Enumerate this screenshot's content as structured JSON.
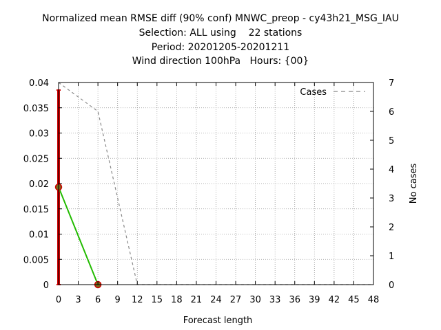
{
  "chart_data": {
    "type": "line",
    "title_lines": [
      "Normalized mean RMSE diff (90% conf) MNWC_preop - cy43h21_MSG_IAU",
      "Selection: ALL using    22 stations",
      "Period: 20201205-20201211",
      "Wind direction 100hPa   Hours: {00}"
    ],
    "xlabel": "Forecast length",
    "ylabel_right": "No cases",
    "xlim": [
      0,
      48
    ],
    "xticks": [
      0,
      3,
      6,
      9,
      12,
      15,
      18,
      21,
      24,
      27,
      30,
      33,
      36,
      39,
      42,
      45,
      48
    ],
    "ylim_left": [
      0,
      0.04
    ],
    "yticks_left": [
      "0",
      "0.005",
      "0.01",
      "0.015",
      "0.02",
      "0.025",
      "0.03",
      "0.035",
      "0.04"
    ],
    "ylim_right": [
      0,
      7
    ],
    "yticks_right": [
      "0",
      "1",
      "2",
      "3",
      "4",
      "5",
      "6",
      "7"
    ],
    "grid": true,
    "legend_position": "top-right",
    "series": [
      {
        "style": "line",
        "color": "#22bb00",
        "axis": "left",
        "x": [
          0,
          6
        ],
        "y": [
          0.0193,
          0.0
        ]
      },
      {
        "name": "Cases",
        "style": "dashed",
        "color": "#888888",
        "axis": "right",
        "x": [
          0,
          3,
          6,
          12,
          15,
          18,
          21,
          24,
          27,
          30,
          33,
          36,
          39,
          42,
          45,
          48
        ],
        "y": [
          7,
          6.5,
          6,
          0,
          0,
          0,
          0,
          0,
          0,
          0,
          0,
          0,
          0,
          0,
          0,
          0
        ]
      }
    ],
    "error_bars": [
      {
        "x": 0,
        "low": 0.0,
        "high": 0.0385,
        "color": "#cc0000"
      },
      {
        "x": 6,
        "low": 0.0,
        "high": 0.0,
        "color": "#cc0000"
      }
    ],
    "markers": [
      {
        "x": 0,
        "y": 0.0193,
        "color": "#cc0000"
      },
      {
        "x": 6,
        "y": 0.0,
        "color": "#cc0000"
      }
    ]
  }
}
